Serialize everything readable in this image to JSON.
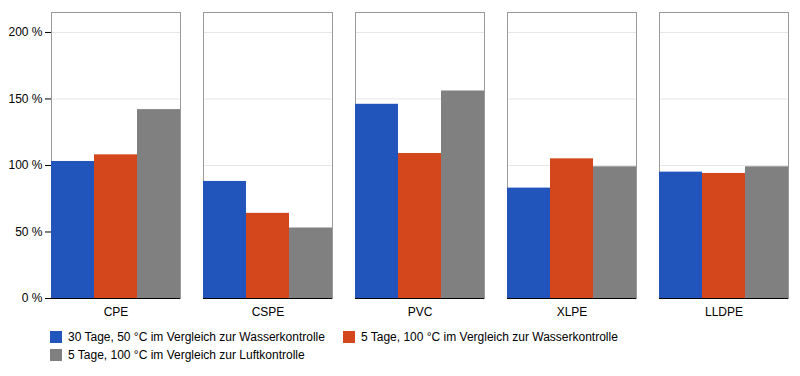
{
  "chart_data": {
    "type": "bar",
    "categories": [
      "CPE",
      "CSPE",
      "PVC",
      "XLPE",
      "LLDPE"
    ],
    "series": [
      {
        "name": "30 Tage, 50 °C im Vergleich zur Wasserkontrolle",
        "color": "#2255BB",
        "values": [
          103,
          88,
          146,
          83,
          95
        ]
      },
      {
        "name": "5 Tage, 100 °C im Vergleich zur Wasserkontrolle",
        "color": "#D4471C",
        "values": [
          108,
          64,
          109,
          105,
          94
        ]
      },
      {
        "name": "5 Tage, 100 °C im Vergleich zur Luftkontrolle",
        "color": "#808080",
        "values": [
          142,
          53,
          156,
          99,
          99
        ]
      }
    ],
    "ylim": [
      0,
      215
    ],
    "yticks": [
      {
        "value": 0,
        "label": "0 %"
      },
      {
        "value": 50,
        "label": "50 %"
      },
      {
        "value": 100,
        "label": "100 %"
      },
      {
        "value": 150,
        "label": "150 %"
      },
      {
        "value": 200,
        "label": "200 %"
      }
    ],
    "grid": true,
    "legend": "bottom"
  }
}
